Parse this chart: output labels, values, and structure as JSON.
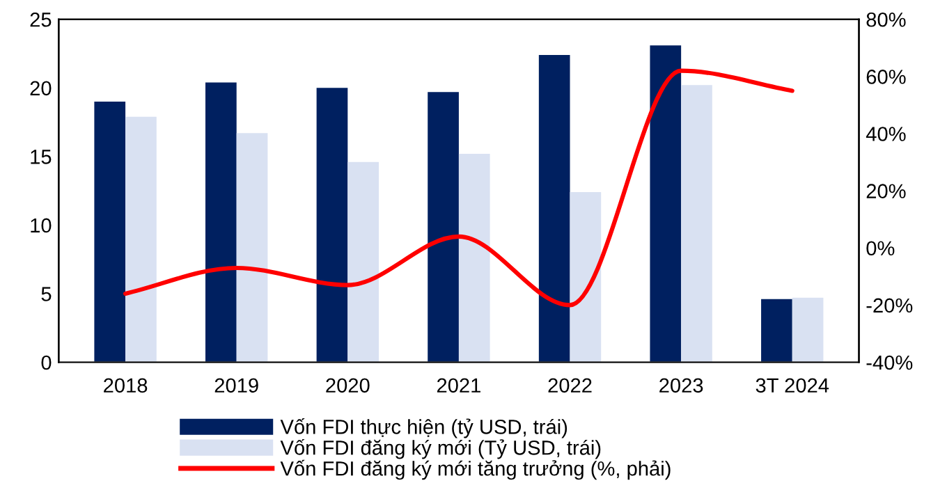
{
  "chart_data": {
    "type": "bar",
    "categories": [
      "2018",
      "2019",
      "2020",
      "2021",
      "2022",
      "2023",
      "3T 2024"
    ],
    "series": [
      {
        "name": "Vốn FDI thực hiện (tỷ USD, trái)",
        "color": "#002060",
        "values": [
          19.0,
          20.4,
          20.0,
          19.7,
          22.4,
          23.1,
          4.6
        ]
      },
      {
        "name": "Vốn FDI đăng ký mới (Tỷ USD, trái)",
        "color": "#d9e1f2",
        "values": [
          17.9,
          16.7,
          14.6,
          15.2,
          12.4,
          20.2,
          4.7
        ]
      },
      {
        "name": "Vốn FDI đăng ký mới tăng trưởng (%, phải)",
        "color": "#ff0000",
        "type": "line",
        "axis": "y2",
        "values": [
          -16,
          -7,
          -13,
          4,
          -20,
          62,
          55
        ]
      }
    ],
    "ylim": [
      0,
      25
    ],
    "yticks": [
      0,
      5,
      10,
      15,
      20,
      25
    ],
    "y2lim": [
      -40,
      80
    ],
    "y2ticks": [
      {
        "value": -40,
        "label": "-40%"
      },
      {
        "value": -20,
        "label": "-20%"
      },
      {
        "value": 0,
        "label": "0%"
      },
      {
        "value": 20,
        "label": "20%"
      },
      {
        "value": 40,
        "label": "40%"
      },
      {
        "value": 60,
        "label": "60%"
      },
      {
        "value": 80,
        "label": "80%"
      }
    ],
    "grid": false,
    "legend": "bottom",
    "marker": "none",
    "line_style": "solid"
  }
}
